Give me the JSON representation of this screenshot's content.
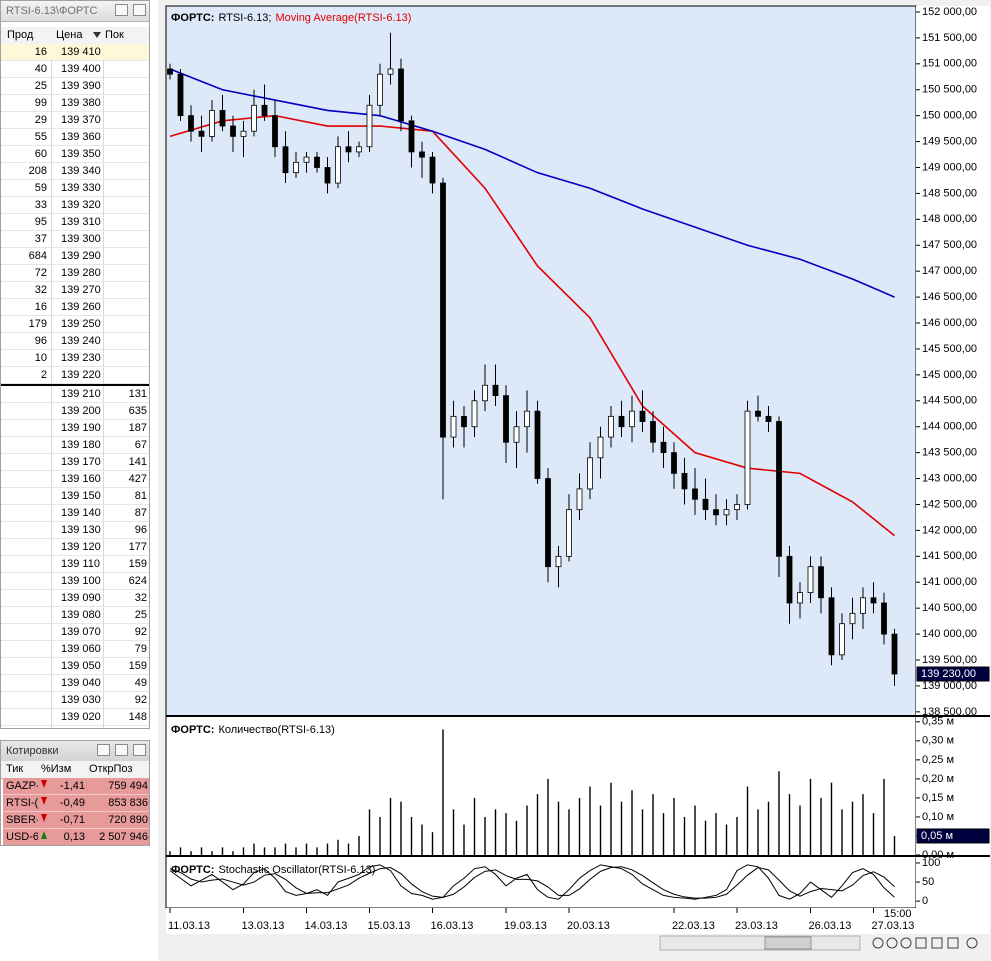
{
  "order_book": {
    "title": "RTSI-6.13\\ФОРТС",
    "columns": [
      "Прод",
      "Цена",
      "Пок"
    ],
    "asks": [
      [
        16,
        "139 410"
      ],
      [
        40,
        "139 400"
      ],
      [
        25,
        "139 390"
      ],
      [
        99,
        "139 380"
      ],
      [
        29,
        "139 370"
      ],
      [
        55,
        "139 360"
      ],
      [
        60,
        "139 350"
      ],
      [
        208,
        "139 340"
      ],
      [
        59,
        "139 330"
      ],
      [
        33,
        "139 320"
      ],
      [
        95,
        "139 310"
      ],
      [
        37,
        "139 300"
      ],
      [
        684,
        "139 290"
      ],
      [
        72,
        "139 280"
      ],
      [
        32,
        "139 270"
      ],
      [
        16,
        "139 260"
      ],
      [
        179,
        "139 250"
      ],
      [
        96,
        "139 240"
      ],
      [
        10,
        "139 230"
      ],
      [
        2,
        "139 220"
      ]
    ],
    "bids": [
      [
        "139 210",
        131
      ],
      [
        "139 200",
        635
      ],
      [
        "139 190",
        187
      ],
      [
        "139 180",
        67
      ],
      [
        "139 170",
        141
      ],
      [
        "139 160",
        427
      ],
      [
        "139 150",
        81
      ],
      [
        "139 140",
        87
      ],
      [
        "139 130",
        96
      ],
      [
        "139 120",
        177
      ],
      [
        "139 110",
        159
      ],
      [
        "139 100",
        624
      ],
      [
        "139 090",
        32
      ],
      [
        "139 080",
        25
      ],
      [
        "139 070",
        92
      ],
      [
        "139 060",
        79
      ],
      [
        "139 050",
        159
      ],
      [
        "139 040",
        49
      ],
      [
        "139 030",
        92
      ],
      [
        "139 020",
        148
      ]
    ]
  },
  "quotes": {
    "title": "Котировки",
    "columns": [
      "Тик",
      "%Изм",
      "ОткрПоз"
    ],
    "rows": [
      [
        "GAZP-",
        "-1,41",
        "759 494"
      ],
      [
        "RTSI-(",
        "-0,49",
        "853 836"
      ],
      [
        "SBER-",
        "-0,71",
        "720 890"
      ],
      [
        "USD-6",
        "0,13",
        "2 507 946"
      ]
    ]
  },
  "chart_data": [
    {
      "type": "candlestick",
      "source": "ФОРТС:",
      "symbol": "RTSI-6.13;",
      "candles": [
        [
          150900,
          151000,
          150700,
          150800
        ],
        [
          150800,
          150900,
          149900,
          150000
        ],
        [
          150000,
          150200,
          149500,
          149700
        ],
        [
          149700,
          150000,
          149300,
          149600
        ],
        [
          149600,
          150300,
          149500,
          150100
        ],
        [
          150100,
          150400,
          149700,
          149800
        ],
        [
          149800,
          150000,
          149300,
          149600
        ],
        [
          149600,
          149900,
          149200,
          149700
        ],
        [
          149700,
          150500,
          149600,
          150200
        ],
        [
          150200,
          150600,
          149900,
          150000
        ],
        [
          150000,
          150300,
          149200,
          149400
        ],
        [
          149400,
          149700,
          148700,
          148900
        ],
        [
          148900,
          149300,
          148800,
          149100
        ],
        [
          149100,
          149300,
          148900,
          149200
        ],
        [
          149200,
          149300,
          148900,
          149000
        ],
        [
          149000,
          149200,
          148500,
          148700
        ],
        [
          148700,
          149600,
          148600,
          149400
        ],
        [
          149400,
          149700,
          149100,
          149300
        ],
        [
          149300,
          149500,
          149200,
          149400
        ],
        [
          149400,
          150400,
          149300,
          150200
        ],
        [
          150200,
          151000,
          150000,
          150800
        ],
        [
          150800,
          151600,
          150600,
          150900
        ],
        [
          150900,
          151100,
          149700,
          149900
        ],
        [
          149900,
          150000,
          149000,
          149300
        ],
        [
          149300,
          149500,
          148800,
          149200
        ],
        [
          149200,
          149300,
          148500,
          148700
        ],
        [
          148700,
          148800,
          142600,
          143800
        ],
        [
          143800,
          144500,
          143600,
          144200
        ],
        [
          144200,
          144400,
          143600,
          144000
        ],
        [
          144000,
          144700,
          143800,
          144500
        ],
        [
          144500,
          145200,
          144300,
          144800
        ],
        [
          144800,
          145200,
          144400,
          144600
        ],
        [
          144600,
          144800,
          143300,
          143700
        ],
        [
          143700,
          144300,
          143200,
          144000
        ],
        [
          144000,
          144700,
          143500,
          144300
        ],
        [
          144300,
          144500,
          142900,
          143000
        ],
        [
          143000,
          143200,
          141000,
          141300
        ],
        [
          141300,
          141700,
          140900,
          141500
        ],
        [
          141500,
          142700,
          141400,
          142400
        ],
        [
          142400,
          143100,
          142200,
          142800
        ],
        [
          142800,
          143700,
          142600,
          143400
        ],
        [
          143400,
          144000,
          143000,
          143800
        ],
        [
          143800,
          144400,
          143600,
          144200
        ],
        [
          144200,
          144500,
          143800,
          144000
        ],
        [
          144000,
          144600,
          143700,
          144300
        ],
        [
          144300,
          144700,
          143900,
          144100
        ],
        [
          144100,
          144300,
          143500,
          143700
        ],
        [
          143700,
          144000,
          143200,
          143500
        ],
        [
          143500,
          143700,
          142800,
          143100
        ],
        [
          143100,
          143400,
          142500,
          142800
        ],
        [
          142800,
          143200,
          142300,
          142600
        ],
        [
          142600,
          143000,
          142200,
          142400
        ],
        [
          142400,
          142700,
          142100,
          142300
        ],
        [
          142300,
          142600,
          142100,
          142400
        ],
        [
          142400,
          142700,
          142200,
          142500
        ],
        [
          142500,
          144500,
          142400,
          144300
        ],
        [
          144300,
          144600,
          144100,
          144200
        ],
        [
          144200,
          144400,
          143900,
          144100
        ],
        [
          144100,
          144200,
          141100,
          141500
        ],
        [
          141500,
          141700,
          140200,
          140600
        ],
        [
          140600,
          141000,
          140300,
          140800
        ],
        [
          140800,
          141500,
          140600,
          141300
        ],
        [
          141300,
          141500,
          140400,
          140700
        ],
        [
          140700,
          140900,
          139400,
          139600
        ],
        [
          139600,
          140400,
          139500,
          140200
        ],
        [
          140200,
          140700,
          139900,
          140400
        ],
        [
          140400,
          140900,
          140100,
          140700
        ],
        [
          140700,
          141000,
          140400,
          140600
        ],
        [
          140600,
          140800,
          139800,
          140000
        ],
        [
          140000,
          140100,
          139000,
          139230
        ]
      ],
      "overlays": [
        {
          "name": "Moving Average(RTSI-6.13)",
          "color": "#e00000",
          "x": [
            0,
            5,
            10,
            15,
            20,
            25,
            30,
            35,
            40,
            45,
            50,
            55,
            60,
            65,
            69
          ],
          "values": [
            149600,
            149900,
            150000,
            149800,
            149800,
            149700,
            148600,
            147100,
            146100,
            144400,
            143500,
            143200,
            143100,
            142550,
            141900
          ]
        },
        {
          "color": "#0000c0",
          "x": [
            0,
            5,
            10,
            15,
            20,
            25,
            30,
            35,
            40,
            45,
            50,
            55,
            60,
            65,
            69
          ],
          "values": [
            150900,
            150500,
            150300,
            150100,
            150000,
            149700,
            149350,
            148900,
            148600,
            148200,
            147850,
            147500,
            147230,
            146850,
            146500
          ]
        }
      ],
      "ylim": [
        138420,
        152115
      ],
      "yticks": [
        {
          "value": 152000,
          "label": "152 000,00"
        },
        {
          "value": 151500,
          "label": "151 500,00"
        },
        {
          "value": 151000,
          "label": "151 000,00"
        },
        {
          "value": 150500,
          "label": "150 500,00"
        },
        {
          "value": 150000,
          "label": "150 000,00"
        },
        {
          "value": 149500,
          "label": "149 500,00"
        },
        {
          "value": 149000,
          "label": "149 000,00"
        },
        {
          "value": 148500,
          "label": "148 500,00"
        },
        {
          "value": 148000,
          "label": "148 000,00"
        },
        {
          "value": 147500,
          "label": "147 500,00"
        },
        {
          "value": 147000,
          "label": "147 000,00"
        },
        {
          "value": 146500,
          "label": "146 500,00"
        },
        {
          "value": 146000,
          "label": "146 000,00"
        },
        {
          "value": 145500,
          "label": "145 500,00"
        },
        {
          "value": 145000,
          "label": "145 000,00"
        },
        {
          "value": 144500,
          "label": "144 500,00"
        },
        {
          "value": 144000,
          "label": "144 000,00"
        },
        {
          "value": 143500,
          "label": "143 500,00"
        },
        {
          "value": 143000,
          "label": "143 000,00"
        },
        {
          "value": 142500,
          "label": "142 500,00"
        },
        {
          "value": 142000,
          "label": "142 000,00"
        },
        {
          "value": 141500,
          "label": "141 500,00"
        },
        {
          "value": 141000,
          "label": "141 000,00"
        },
        {
          "value": 140500,
          "label": "140 500,00"
        },
        {
          "value": 140000,
          "label": "140 000,00"
        },
        {
          "value": 139500,
          "label": "139 500,00"
        },
        {
          "value": 139000,
          "label": "139 000,00"
        },
        {
          "value": 138500,
          "label": "138 500,00"
        }
      ],
      "last_label": "139 230,00"
    },
    {
      "type": "bar",
      "source": "ФОРТС:",
      "title": "Количество(RTSI-6.13)",
      "values": [
        0.01,
        0.02,
        0.01,
        0.02,
        0.01,
        0.02,
        0.01,
        0.02,
        0.03,
        0.02,
        0.02,
        0.03,
        0.02,
        0.03,
        0.02,
        0.03,
        0.04,
        0.03,
        0.05,
        0.12,
        0.1,
        0.15,
        0.14,
        0.1,
        0.08,
        0.06,
        0.33,
        0.12,
        0.08,
        0.15,
        0.1,
        0.12,
        0.11,
        0.09,
        0.13,
        0.16,
        0.2,
        0.14,
        0.12,
        0.15,
        0.18,
        0.13,
        0.19,
        0.14,
        0.17,
        0.12,
        0.16,
        0.11,
        0.15,
        0.1,
        0.13,
        0.09,
        0.11,
        0.08,
        0.1,
        0.18,
        0.12,
        0.14,
        0.22,
        0.16,
        0.13,
        0.2,
        0.15,
        0.19,
        0.12,
        0.14,
        0.16,
        0.11,
        0.2,
        0.05
      ],
      "color": "#000000",
      "ylim": [
        0,
        0.36
      ],
      "yticks": [
        {
          "value": 0.35,
          "label": "0,35 м"
        },
        {
          "value": 0.3,
          "label": "0,30 м"
        },
        {
          "value": 0.25,
          "label": "0,25 м"
        },
        {
          "value": 0.2,
          "label": "0,20 м"
        },
        {
          "value": 0.15,
          "label": "0,15 м"
        },
        {
          "value": 0.1,
          "label": "0,10 м"
        },
        {
          "value": 0.05,
          "label": "0,05 м"
        },
        {
          "value": 0,
          "label": "0,00 м"
        }
      ],
      "last_label": "0,05 м"
    },
    {
      "type": "line",
      "source": "ФОРТС:",
      "title": "Stochastic Oscillator(RTSI-6.13)",
      "series": [
        {
          "color": "#000000",
          "values": [
            80,
            60,
            40,
            55,
            70,
            50,
            30,
            45,
            75,
            85,
            60,
            25,
            15,
            20,
            30,
            15,
            50,
            60,
            70,
            90,
            95,
            80,
            40,
            20,
            15,
            5,
            10,
            40,
            60,
            85,
            90,
            70,
            40,
            60,
            70,
            30,
            10,
            5,
            30,
            60,
            80,
            95,
            90,
            85,
            70,
            45,
            30,
            15,
            10,
            8,
            5,
            10,
            15,
            30,
            80,
            95,
            90,
            60,
            15,
            5,
            20,
            50,
            30,
            10,
            40,
            75,
            85,
            70,
            35,
            10
          ]
        },
        {
          "color": "#000000",
          "values": [
            85,
            75,
            58,
            50,
            55,
            58,
            50,
            42,
            50,
            68,
            72,
            57,
            35,
            20,
            22,
            22,
            32,
            42,
            60,
            73,
            85,
            88,
            72,
            45,
            25,
            13,
            10,
            18,
            37,
            62,
            78,
            82,
            67,
            57,
            57,
            53,
            37,
            15,
            15,
            32,
            57,
            78,
            88,
            90,
            82,
            67,
            48,
            30,
            18,
            11,
            8,
            8,
            10,
            18,
            42,
            68,
            88,
            82,
            55,
            27,
            13,
            25,
            33,
            30,
            27,
            42,
            67,
            77,
            63,
            38
          ]
        }
      ],
      "ylim": [
        -18,
        113
      ],
      "yticks": [
        100,
        50,
        0
      ],
      "xticks": [
        {
          "value": 0,
          "label": "11.03.13"
        },
        {
          "value": 7,
          "label": "13.03.13"
        },
        {
          "value": 13,
          "label": "14.03.13"
        },
        {
          "value": 19,
          "label": "15.03.13"
        },
        {
          "value": 25,
          "label": "16.03.13"
        },
        {
          "value": 32,
          "label": "19.03.13"
        },
        {
          "value": 38,
          "label": "20.03.13"
        },
        {
          "value": 48,
          "label": "22.03.13"
        },
        {
          "value": 54,
          "label": "23.03.13"
        },
        {
          "value": 61,
          "label": "26.03.13"
        },
        {
          "value": 67,
          "label": "27.03.13"
        }
      ],
      "time_label": {
        "value": 68,
        "label": "15:00"
      }
    }
  ]
}
